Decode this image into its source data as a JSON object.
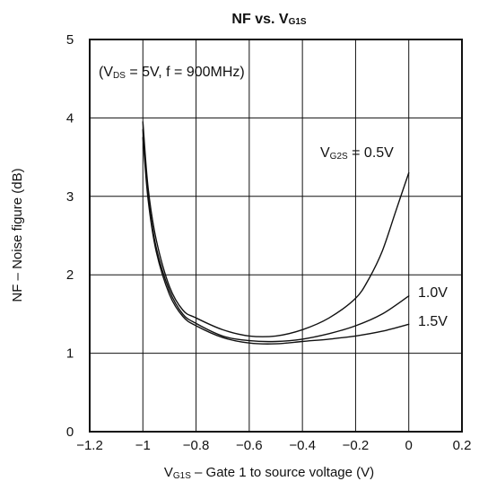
{
  "chart_data": {
    "type": "line",
    "title": {
      "main": "NF vs. V",
      "sub": "G1S"
    },
    "ylabel": "NF – Noise figure   (dB)",
    "xlabel": {
      "main": "V",
      "sub": "G1S",
      "rest": " – Gate 1 to source voltage   (V)"
    },
    "xlim": [
      -1.2,
      0.2
    ],
    "ylim": [
      0,
      5
    ],
    "x_ticks": [
      {
        "v": -1.2,
        "label": "−1.2"
      },
      {
        "v": -1.0,
        "label": "−1"
      },
      {
        "v": -0.8,
        "label": "−0.8"
      },
      {
        "v": -0.6,
        "label": "−0.6"
      },
      {
        "v": -0.4,
        "label": "−0.4"
      },
      {
        "v": -0.2,
        "label": "−0.2"
      },
      {
        "v": 0.0,
        "label": "0"
      },
      {
        "v": 0.2,
        "label": "0.2"
      }
    ],
    "y_ticks": [
      {
        "v": 0,
        "label": "0"
      },
      {
        "v": 1,
        "label": "1"
      },
      {
        "v": 2,
        "label": "2"
      },
      {
        "v": 3,
        "label": "3"
      },
      {
        "v": 4,
        "label": "4"
      },
      {
        "v": 5,
        "label": "5"
      }
    ],
    "grid": true,
    "conditions": {
      "open": "(V",
      "sub": "DS",
      "rest": " = 5V,  f = 900MHz)"
    },
    "series": [
      {
        "name": "0.5V",
        "label": {
          "pre": "V",
          "sub": "G2S",
          "post": " = 0.5V"
        },
        "x": [
          -1.0,
          -0.98,
          -0.95,
          -0.9,
          -0.85,
          -0.8,
          -0.7,
          -0.6,
          -0.5,
          -0.4,
          -0.3,
          -0.2,
          -0.15,
          -0.1,
          -0.05,
          0.0
        ],
        "y": [
          3.95,
          3.1,
          2.45,
          1.85,
          1.55,
          1.45,
          1.3,
          1.22,
          1.22,
          1.3,
          1.45,
          1.7,
          1.95,
          2.3,
          2.8,
          3.3
        ]
      },
      {
        "name": "1.0V",
        "label": {
          "pre": "",
          "sub": "",
          "post": "1.0V"
        },
        "x": [
          -1.0,
          -0.98,
          -0.95,
          -0.9,
          -0.85,
          -0.8,
          -0.7,
          -0.6,
          -0.5,
          -0.4,
          -0.3,
          -0.2,
          -0.1,
          0.0
        ],
        "y": [
          3.85,
          3.0,
          2.35,
          1.8,
          1.5,
          1.38,
          1.22,
          1.16,
          1.15,
          1.18,
          1.25,
          1.35,
          1.5,
          1.73
        ]
      },
      {
        "name": "1.5V",
        "label": {
          "pre": "",
          "sub": "",
          "post": "1.5V"
        },
        "x": [
          -1.0,
          -0.98,
          -0.95,
          -0.9,
          -0.85,
          -0.8,
          -0.7,
          -0.6,
          -0.5,
          -0.4,
          -0.3,
          -0.2,
          -0.1,
          0.0
        ],
        "y": [
          3.75,
          2.95,
          2.3,
          1.75,
          1.47,
          1.35,
          1.2,
          1.13,
          1.12,
          1.15,
          1.18,
          1.22,
          1.28,
          1.37
        ]
      }
    ]
  }
}
